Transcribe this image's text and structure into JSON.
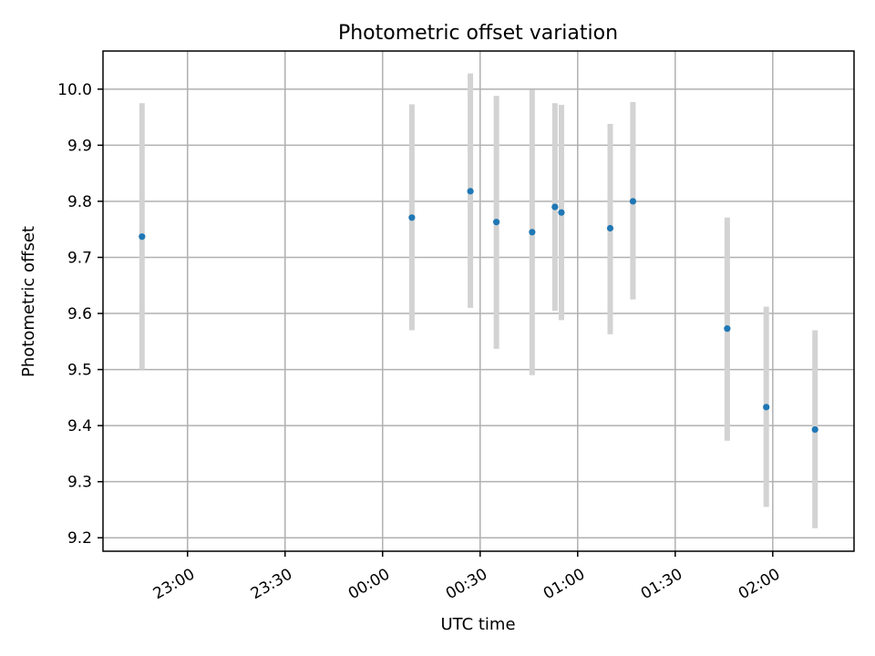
{
  "chart_data": {
    "type": "scatter",
    "title": "Photometric offset variation",
    "xlabel": "UTC time",
    "ylabel": "Photometric offset",
    "x_ticks": [
      "23:00",
      "23:30",
      "00:00",
      "00:30",
      "01:00",
      "01:30",
      "02:00"
    ],
    "y_ticks": [
      "9.2",
      "9.3",
      "9.4",
      "9.5",
      "9.6",
      "9.7",
      "9.8",
      "9.9",
      "10.0"
    ],
    "ylim": [
      9.176,
      10.068
    ],
    "xlim": [
      "22:34",
      "02:25"
    ],
    "grid": true,
    "colors": {
      "point": "#1f77b4",
      "errorbar": "#d3d3d3",
      "grid": "#b0b0b0"
    },
    "points": [
      {
        "x": "22:46",
        "y": 9.737,
        "ylow": 9.5,
        "yhigh": 9.975
      },
      {
        "x": "00:09",
        "y": 9.771,
        "ylow": 9.57,
        "yhigh": 9.973
      },
      {
        "x": "00:27",
        "y": 9.818,
        "ylow": 9.61,
        "yhigh": 10.028
      },
      {
        "x": "00:35",
        "y": 9.763,
        "ylow": 9.537,
        "yhigh": 9.988
      },
      {
        "x": "00:46",
        "y": 9.745,
        "ylow": 9.49,
        "yhigh": 9.999
      },
      {
        "x": "00:53",
        "y": 9.79,
        "ylow": 9.605,
        "yhigh": 9.975
      },
      {
        "x": "00:55",
        "y": 9.78,
        "ylow": 9.588,
        "yhigh": 9.972
      },
      {
        "x": "01:10",
        "y": 9.752,
        "ylow": 9.563,
        "yhigh": 9.938
      },
      {
        "x": "01:17",
        "y": 9.8,
        "ylow": 9.625,
        "yhigh": 9.977
      },
      {
        "x": "01:46",
        "y": 9.573,
        "ylow": 9.373,
        "yhigh": 9.771
      },
      {
        "x": "01:58",
        "y": 9.433,
        "ylow": 9.255,
        "yhigh": 9.612
      },
      {
        "x": "02:13",
        "y": 9.393,
        "ylow": 9.217,
        "yhigh": 9.57
      }
    ]
  }
}
